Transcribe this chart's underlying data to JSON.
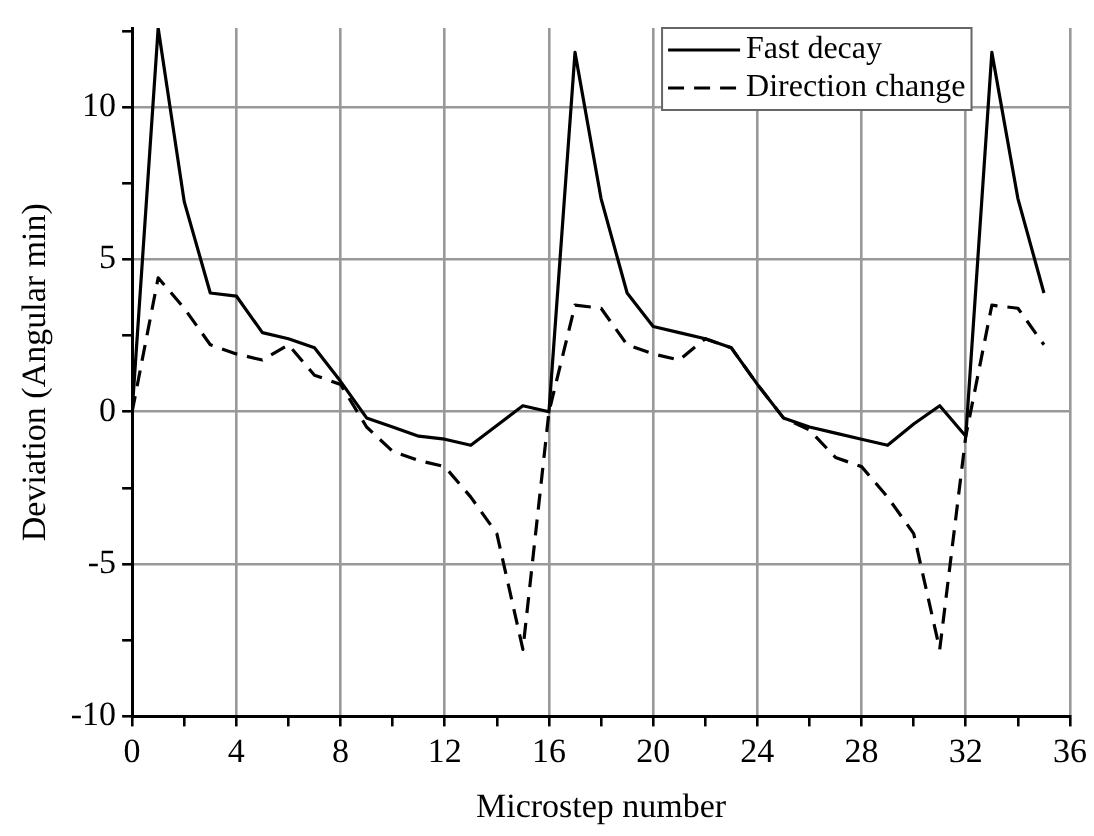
{
  "chart_data": {
    "type": "line",
    "xlabel": "Microstep number",
    "ylabel": "Deviation (Angular min)",
    "x": [
      0,
      1,
      2,
      3,
      4,
      5,
      6,
      7,
      8,
      9,
      10,
      11,
      12,
      13,
      14,
      15,
      16,
      17,
      18,
      19,
      20,
      21,
      22,
      23,
      24,
      25,
      26,
      27,
      28,
      29,
      30,
      31,
      32,
      33,
      34,
      35
    ],
    "series": [
      {
        "name": "Fast decay",
        "color": "#000000",
        "line_style": "solid",
        "values": [
          0,
          12.6,
          6.9,
          3.9,
          3.8,
          2.6,
          2.4,
          2.1,
          1.0,
          -0.2,
          -0.5,
          -0.8,
          -0.9,
          -1.1,
          -0.45,
          0.2,
          0,
          11.8,
          7.0,
          3.9,
          2.8,
          2.6,
          2.4,
          2.1,
          0.9,
          -0.2,
          -0.5,
          -0.7,
          -0.9,
          -1.1,
          -0.4,
          0.2,
          -0.8,
          11.8,
          7.0,
          3.9
        ]
      },
      {
        "name": "Direction change",
        "color": "#000000",
        "line_style": "dashed",
        "values": [
          0,
          4.4,
          3.4,
          2.2,
          1.9,
          1.7,
          2.2,
          1.2,
          0.9,
          -0.5,
          -1.3,
          -1.6,
          -1.8,
          -2.8,
          -4.0,
          -7.8,
          0,
          3.5,
          3.4,
          2.2,
          1.9,
          1.7,
          2.4,
          2.1,
          0.9,
          -0.2,
          -0.6,
          -1.5,
          -1.8,
          -2.8,
          -4.0,
          -7.8,
          -0.8,
          3.5,
          3.4,
          2.2
        ]
      }
    ],
    "xlim": [
      0,
      36
    ],
    "xticks": [
      0,
      {
        "value": 2,
        "label": null
      },
      4,
      {
        "value": 6,
        "label": null
      },
      8,
      {
        "value": 10,
        "label": null
      },
      12,
      {
        "value": 14,
        "label": null
      },
      16,
      {
        "value": 18,
        "label": null
      },
      20,
      {
        "value": 22,
        "label": null
      },
      24,
      {
        "value": 26,
        "label": null
      },
      28,
      {
        "value": 30,
        "label": null
      },
      32,
      {
        "value": 34,
        "label": null
      },
      36
    ],
    "ylim": [
      -10,
      12.6
    ],
    "yticks": [
      -10,
      {
        "value": -7.5,
        "label": null
      },
      -5,
      {
        "value": -2.5,
        "label": null
      },
      0,
      {
        "value": 2.5,
        "label": null
      },
      5,
      {
        "value": 7.5,
        "label": null
      },
      10,
      {
        "value": 12.5,
        "label": null
      }
    ],
    "grid": true,
    "legend": "top right",
    "marker": "none"
  }
}
